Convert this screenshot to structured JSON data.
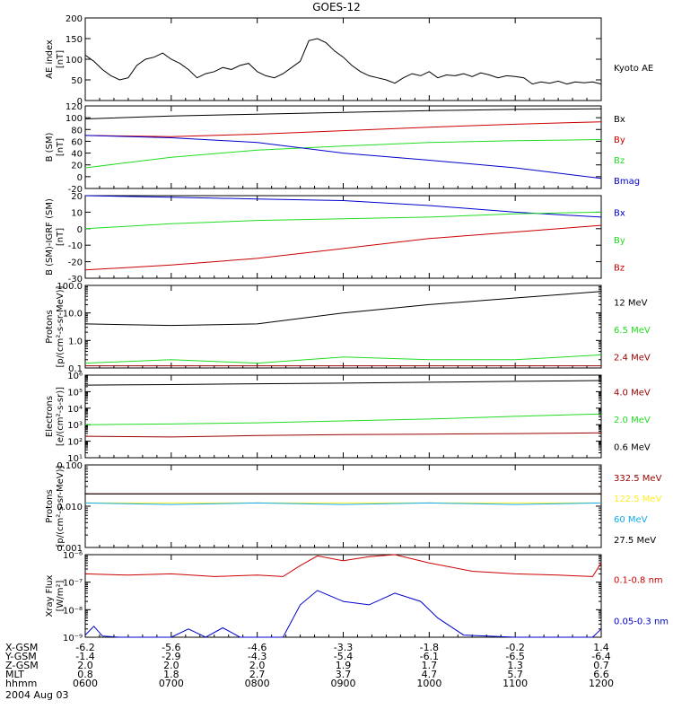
{
  "title": "GOES-12",
  "date": "2004 Aug 03",
  "colors": {
    "black": "#000000",
    "red": "#cc0000",
    "green": "#22dd22",
    "blue": "#0000cc",
    "darkred": "#990000",
    "yellow": "#ffee22",
    "cyan": "#11aaee"
  },
  "time_ticks": [
    "0600",
    "0700",
    "0800",
    "0900",
    "1000",
    "1100",
    "1200"
  ],
  "orbit_table": [
    {
      "label": "X-GSM",
      "values": [
        "-6.2",
        "-5.6",
        "-4.6",
        "-3.3",
        "-1.8",
        "-0.2",
        "1.4"
      ]
    },
    {
      "label": "Y-GSM",
      "values": [
        "-1.4",
        "-2.9",
        "-4.3",
        "-5.4",
        "-6.1",
        "-6.5",
        "-6.4"
      ]
    },
    {
      "label": "Z-GSM",
      "values": [
        "2.0",
        "2.0",
        "2.0",
        "1.9",
        "1.7",
        "1.3",
        "0.7"
      ]
    },
    {
      "label": "MLT",
      "values": [
        "0.8",
        "1.8",
        "2.7",
        "3.7",
        "4.7",
        "5.7",
        "6.6"
      ]
    },
    {
      "label": "hhmm",
      "values": [
        "0600",
        "0700",
        "0800",
        "0900",
        "1000",
        "1100",
        "1200"
      ]
    }
  ],
  "chart_data": [
    {
      "type": "line",
      "ylabel": "AE index\n[nT]",
      "ylim": [
        0,
        200
      ],
      "yticks": [
        "0",
        "50",
        "100",
        "150",
        "200"
      ],
      "series": [
        {
          "name": "Kyoto AE",
          "color": "black",
          "x": [
            6.0,
            6.1,
            6.2,
            6.3,
            6.4,
            6.5,
            6.6,
            6.7,
            6.8,
            6.9,
            7.0,
            7.1,
            7.2,
            7.3,
            7.4,
            7.5,
            7.6,
            7.7,
            7.8,
            7.9,
            8.0,
            8.1,
            8.2,
            8.3,
            8.4,
            8.5,
            8.6,
            8.7,
            8.8,
            8.9,
            9.0,
            9.1,
            9.2,
            9.3,
            9.4,
            9.5,
            9.6,
            9.7,
            9.8,
            9.9,
            10.0,
            10.1,
            10.2,
            10.3,
            10.4,
            10.5,
            10.6,
            10.7,
            10.8,
            10.9,
            11.0,
            11.1,
            11.2,
            11.3,
            11.4,
            11.5,
            11.6,
            11.7,
            11.8,
            11.9,
            12.0
          ],
          "y": [
            110,
            95,
            75,
            60,
            50,
            55,
            85,
            100,
            105,
            115,
            100,
            90,
            75,
            55,
            65,
            70,
            80,
            75,
            85,
            90,
            70,
            60,
            55,
            65,
            80,
            95,
            145,
            150,
            140,
            120,
            105,
            85,
            70,
            60,
            55,
            50,
            42,
            55,
            65,
            60,
            70,
            55,
            62,
            60,
            65,
            58,
            67,
            62,
            55,
            60,
            58,
            55,
            40,
            45,
            42,
            47,
            40,
            45,
            43,
            45,
            40
          ]
        }
      ]
    },
    {
      "type": "line",
      "ylabel": "B (SM)\n[nT]",
      "ylim": [
        -20,
        120
      ],
      "yticks": [
        "-20",
        "0",
        "20",
        "40",
        "60",
        "80",
        "100",
        "120"
      ],
      "series": [
        {
          "name": "Bx",
          "color": "black",
          "x": [
            6,
            7,
            8,
            9,
            10,
            11,
            12
          ],
          "y": [
            98,
            103,
            106,
            109,
            112,
            114,
            115
          ]
        },
        {
          "name": "By",
          "color": "red",
          "x": [
            6,
            7,
            8,
            9,
            10,
            11,
            12
          ],
          "y": [
            70,
            68,
            72,
            78,
            84,
            89,
            93
          ]
        },
        {
          "name": "Bz",
          "color": "green",
          "x": [
            6,
            7,
            8,
            9,
            10,
            11,
            12
          ],
          "y": [
            15,
            33,
            45,
            52,
            58,
            61,
            63
          ]
        },
        {
          "name": "Bmag",
          "color": "blue",
          "x": [
            6,
            7,
            8,
            9,
            10,
            11,
            12
          ],
          "y": [
            70,
            66,
            58,
            40,
            28,
            15,
            -3
          ]
        }
      ]
    },
    {
      "type": "line",
      "ylabel": "B (SM)-IGRF (SM)\n[nT]",
      "ylim": [
        -30,
        20
      ],
      "yticks": [
        "-30",
        "-20",
        "-10",
        "0",
        "10",
        "20"
      ],
      "series": [
        {
          "name": "Bx",
          "color": "blue",
          "x": [
            6,
            7,
            8,
            9,
            10,
            11,
            12
          ],
          "y": [
            20,
            19,
            18,
            17,
            14,
            10,
            7
          ]
        },
        {
          "name": "By",
          "color": "green",
          "x": [
            6,
            7,
            8,
            9,
            10,
            11,
            12
          ],
          "y": [
            0,
            3,
            5,
            6,
            7,
            9,
            10
          ]
        },
        {
          "name": "Bz",
          "color": "red",
          "x": [
            6,
            7,
            8,
            9,
            10,
            11,
            12
          ],
          "y": [
            -25,
            -22,
            -18,
            -12,
            -6,
            -2,
            2
          ]
        }
      ]
    },
    {
      "type": "line",
      "ylabel": "Protons\n[p/(cm²-s-sr-MeV)]",
      "yscale": "log",
      "ylim": [
        0.1,
        100
      ],
      "yticks": [
        "0.1",
        "1.0",
        "10.0",
        "100.0"
      ],
      "series": [
        {
          "name": "12 MeV",
          "color": "black",
          "x": [
            6,
            7,
            8,
            9,
            10,
            11,
            12
          ],
          "y": [
            4,
            3.5,
            4,
            10,
            20,
            35,
            60
          ]
        },
        {
          "name": "6.5 MeV",
          "color": "green",
          "x": [
            6,
            7,
            8,
            9,
            10,
            11,
            12
          ],
          "y": [
            0.15,
            0.2,
            0.15,
            0.25,
            0.2,
            0.2,
            0.3
          ]
        },
        {
          "name": "2.4 MeV",
          "color": "darkred",
          "x": [
            6,
            7,
            8,
            9,
            10,
            11,
            12
          ],
          "y": [
            0.12,
            0.12,
            0.12,
            0.12,
            0.12,
            0.12,
            0.12
          ]
        }
      ]
    },
    {
      "type": "line",
      "ylabel": "Electrons\n[e/(cm²-s-sr)]",
      "yscale": "log",
      "ylim": [
        10,
        1000000
      ],
      "yticks": [
        "10¹",
        "10²",
        "10³",
        "10⁴",
        "10⁵",
        "10⁶"
      ],
      "series": [
        {
          "name": "4.0 MeV",
          "color": "darkred",
          "x": [
            6,
            7,
            8,
            9,
            10,
            11,
            12
          ],
          "y": [
            200,
            180,
            220,
            250,
            270,
            290,
            320
          ]
        },
        {
          "name": "2.0 MeV",
          "color": "green",
          "x": [
            6,
            7,
            8,
            9,
            10,
            11,
            12
          ],
          "y": [
            1000,
            1100,
            1300,
            1700,
            2200,
            3200,
            4500
          ]
        },
        {
          "name": "0.6 MeV",
          "color": "black",
          "x": [
            6,
            7,
            8,
            9,
            10,
            11,
            12
          ],
          "y": [
            250000,
            270000,
            300000,
            330000,
            370000,
            420000,
            470000
          ]
        }
      ]
    },
    {
      "type": "line",
      "ylabel": "Protons\n[p/(cm²-s-sr-MeV)]",
      "yscale": "log",
      "ylim": [
        0.001,
        0.1
      ],
      "yticks": [
        "0.001",
        "0.010",
        "0.100"
      ],
      "series": [
        {
          "name": "332.5 MeV",
          "color": "darkred",
          "x": [
            6,
            12
          ],
          "y": [
            0.02,
            0.02
          ]
        },
        {
          "name": "122.5 MeV",
          "color": "yellow",
          "x": [
            6,
            12
          ],
          "y": [
            0.012,
            0.012
          ]
        },
        {
          "name": "60 MeV",
          "color": "cyan",
          "x": [
            6,
            7,
            8,
            9,
            10,
            11,
            12
          ],
          "y": [
            0.012,
            0.011,
            0.012,
            0.011,
            0.012,
            0.011,
            0.012
          ]
        },
        {
          "name": "27.5 MeV",
          "color": "black",
          "x": [
            6,
            7,
            8,
            9,
            10,
            11,
            12
          ],
          "y": [
            0.02,
            0.02,
            0.02,
            0.02,
            0.02,
            0.02,
            0.02
          ]
        }
      ]
    },
    {
      "type": "line",
      "ylabel": "Xray Flux\n[W/m²]",
      "yscale": "log",
      "ylim": [
        1e-09,
        1e-06
      ],
      "yticks": [
        "10⁻⁹",
        "10⁻⁸",
        "10⁻⁷",
        "10⁻⁶"
      ],
      "series": [
        {
          "name": "0.1-0.8 nm",
          "color": "red",
          "x": [
            6.0,
            6.5,
            7.0,
            7.5,
            8.0,
            8.3,
            8.5,
            8.7,
            9.0,
            9.3,
            9.6,
            10.0,
            10.5,
            11.0,
            11.5,
            11.9,
            12.0
          ],
          "y": [
            2e-07,
            1.8e-07,
            2e-07,
            1.6e-07,
            1.8e-07,
            1.6e-07,
            4e-07,
            9e-07,
            6e-07,
            8.5e-07,
            1e-06,
            5e-07,
            2.5e-07,
            2e-07,
            1.8e-07,
            1.6e-07,
            5e-07
          ]
        },
        {
          "name": "0.05-0.3 nm",
          "color": "blue",
          "x": [
            6.0,
            6.1,
            6.2,
            6.4,
            6.8,
            7.0,
            7.2,
            7.4,
            7.6,
            7.8,
            8.0,
            8.3,
            8.5,
            8.7,
            9.0,
            9.3,
            9.6,
            9.9,
            10.1,
            10.4,
            11.0,
            11.5,
            11.9,
            12.0
          ],
          "y": [
            1.2e-09,
            2.5e-09,
            1.1e-09,
            1e-09,
            1e-09,
            1e-09,
            2e-09,
            1e-09,
            2.2e-09,
            1e-09,
            1e-09,
            1e-09,
            1.5e-08,
            5e-08,
            2e-08,
            1.5e-08,
            4e-08,
            2e-08,
            5e-09,
            1.2e-09,
            1e-09,
            1e-09,
            1e-09,
            2e-09
          ]
        }
      ]
    }
  ]
}
